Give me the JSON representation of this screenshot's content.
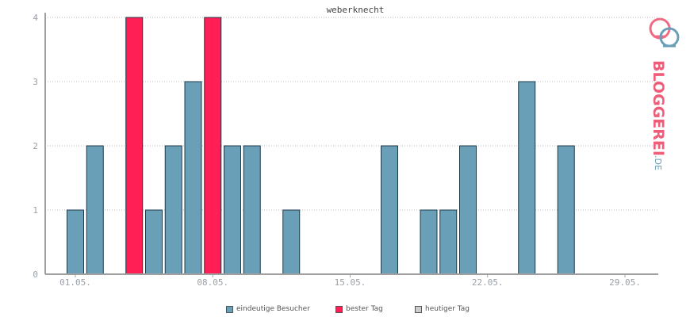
{
  "chart_data": {
    "type": "bar",
    "title": "weberknecht",
    "xlabel": "",
    "ylabel": "",
    "ylim": [
      0,
      4
    ],
    "yticks": [
      "0",
      "1",
      "2",
      "3",
      "4"
    ],
    "xticks": [
      "01.05.",
      "08.05.",
      "15.05.",
      "22.05.",
      "29.05."
    ],
    "days": [
      1,
      2,
      3,
      4,
      5,
      6,
      7,
      8,
      9,
      10,
      11,
      12,
      13,
      14,
      15,
      16,
      17,
      18,
      19,
      20,
      21,
      22,
      23,
      24,
      25,
      26,
      27,
      28,
      29,
      30
    ],
    "values": [
      1,
      2,
      0,
      4,
      1,
      2,
      3,
      4,
      2,
      2,
      0,
      1,
      0,
      0,
      0,
      0,
      2,
      0,
      1,
      1,
      2,
      0,
      0,
      3,
      0,
      2,
      0,
      0,
      0,
      0
    ],
    "best_days": [
      4,
      8
    ],
    "grid": true,
    "legend_placement": "bottom"
  },
  "legend": [
    {
      "label": "eindeutige Besucher",
      "color": "#6a9fb8"
    },
    {
      "label": "bester Tag",
      "color": "#ff1f55"
    },
    {
      "label": "heutiger Tag",
      "color": "#cccccc"
    }
  ],
  "colors": {
    "bar": "#6a9fb8",
    "best": "#ff1f55",
    "border": "#1e3a4a"
  },
  "logo": {
    "text": "BLOGGEREI",
    "suffix": ".DE"
  }
}
